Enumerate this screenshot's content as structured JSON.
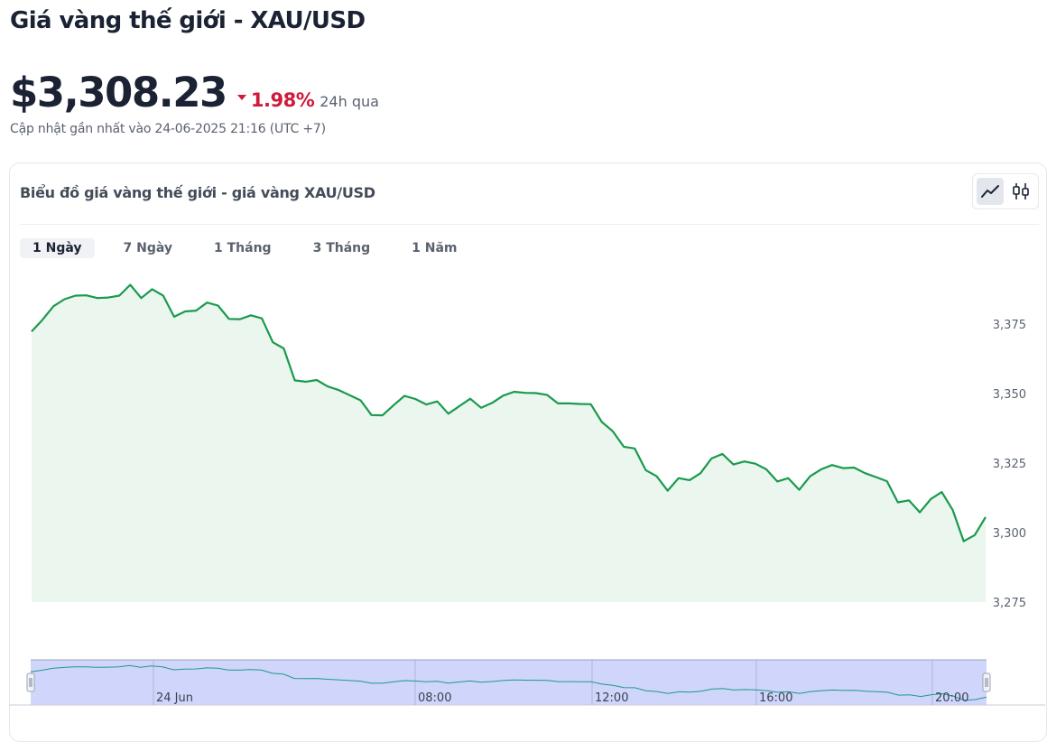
{
  "page": {
    "title": "Giá vàng thế giới - XAU/USD",
    "price": "$3,308.23",
    "change_pct": "1.98%",
    "change_direction": "down",
    "change_period": "24h qua",
    "updated": "Cập nhật gần nhất vào 24-06-2025 21:16 (UTC +7)"
  },
  "card": {
    "title": "Biểu đồ giá vàng thế giới - giá vàng XAU/USD",
    "chart_types": [
      {
        "name": "line",
        "icon": "line-chart-icon",
        "active": true
      },
      {
        "name": "candlestick",
        "icon": "candlestick-icon",
        "active": false
      }
    ],
    "tabs": [
      {
        "label": "1 Ngày",
        "active": true
      },
      {
        "label": "7 Ngày",
        "active": false
      },
      {
        "label": "1 Tháng",
        "active": false
      },
      {
        "label": "3 Tháng",
        "active": false
      },
      {
        "label": "1 Năm",
        "active": false
      }
    ]
  },
  "colors": {
    "line": "#1a9a4d",
    "area_fill": "#ebf6ef",
    "navigator_fill": "#cfd5fb",
    "down": "#d0193b"
  },
  "chart_data": {
    "type": "area",
    "ylim": [
      3275,
      3390
    ],
    "yticks": [
      "3,275",
      "3,300",
      "3,325",
      "3,350",
      "3,375"
    ],
    "ytick_values": [
      3275,
      3300,
      3325,
      3350,
      3375
    ],
    "series": [
      {
        "values": [
          3372.4,
          3376.6,
          3381.5,
          3384.0,
          3385.3,
          3385.4,
          3384.4,
          3384.6,
          3385.3,
          3389.2,
          3384.4,
          3387.6,
          3385.3,
          3377.7,
          3379.6,
          3379.9,
          3382.8,
          3381.7,
          3376.9,
          3376.8,
          3378.2,
          3377.1,
          3368.5,
          3366.3,
          3354.8,
          3354.3,
          3354.9,
          3352.6,
          3351.3,
          3349.5,
          3347.6,
          3342.3,
          3342.2,
          3345.8,
          3349.2,
          3348.1,
          3346.1,
          3347.2,
          3342.8,
          3345.5,
          3348.2,
          3344.9,
          3346.7,
          3349.3,
          3350.7,
          3350.3,
          3350.2,
          3349.6,
          3346.5,
          3346.5,
          3346.3,
          3346.2,
          3339.8,
          3336.5,
          3330.9,
          3330.3,
          3322.5,
          3320.3,
          3315.1,
          3319.6,
          3318.9,
          3321.4,
          3326.7,
          3328.3,
          3324.5,
          3325.6,
          3324.8,
          3322.8,
          3318.4,
          3319.6,
          3315.4,
          3320.3,
          3322.8,
          3324.3,
          3323.2,
          3323.4,
          3321.4,
          3320.0,
          3318.5,
          3310.9,
          3311.6,
          3307.3,
          3312.1,
          3314.6,
          3308.1,
          3296.9,
          3299.1,
          3305.6
        ]
      }
    ],
    "navigator_labels": [
      "24 Jun",
      "08:00",
      "12:00",
      "16:00",
      "20:00"
    ]
  }
}
